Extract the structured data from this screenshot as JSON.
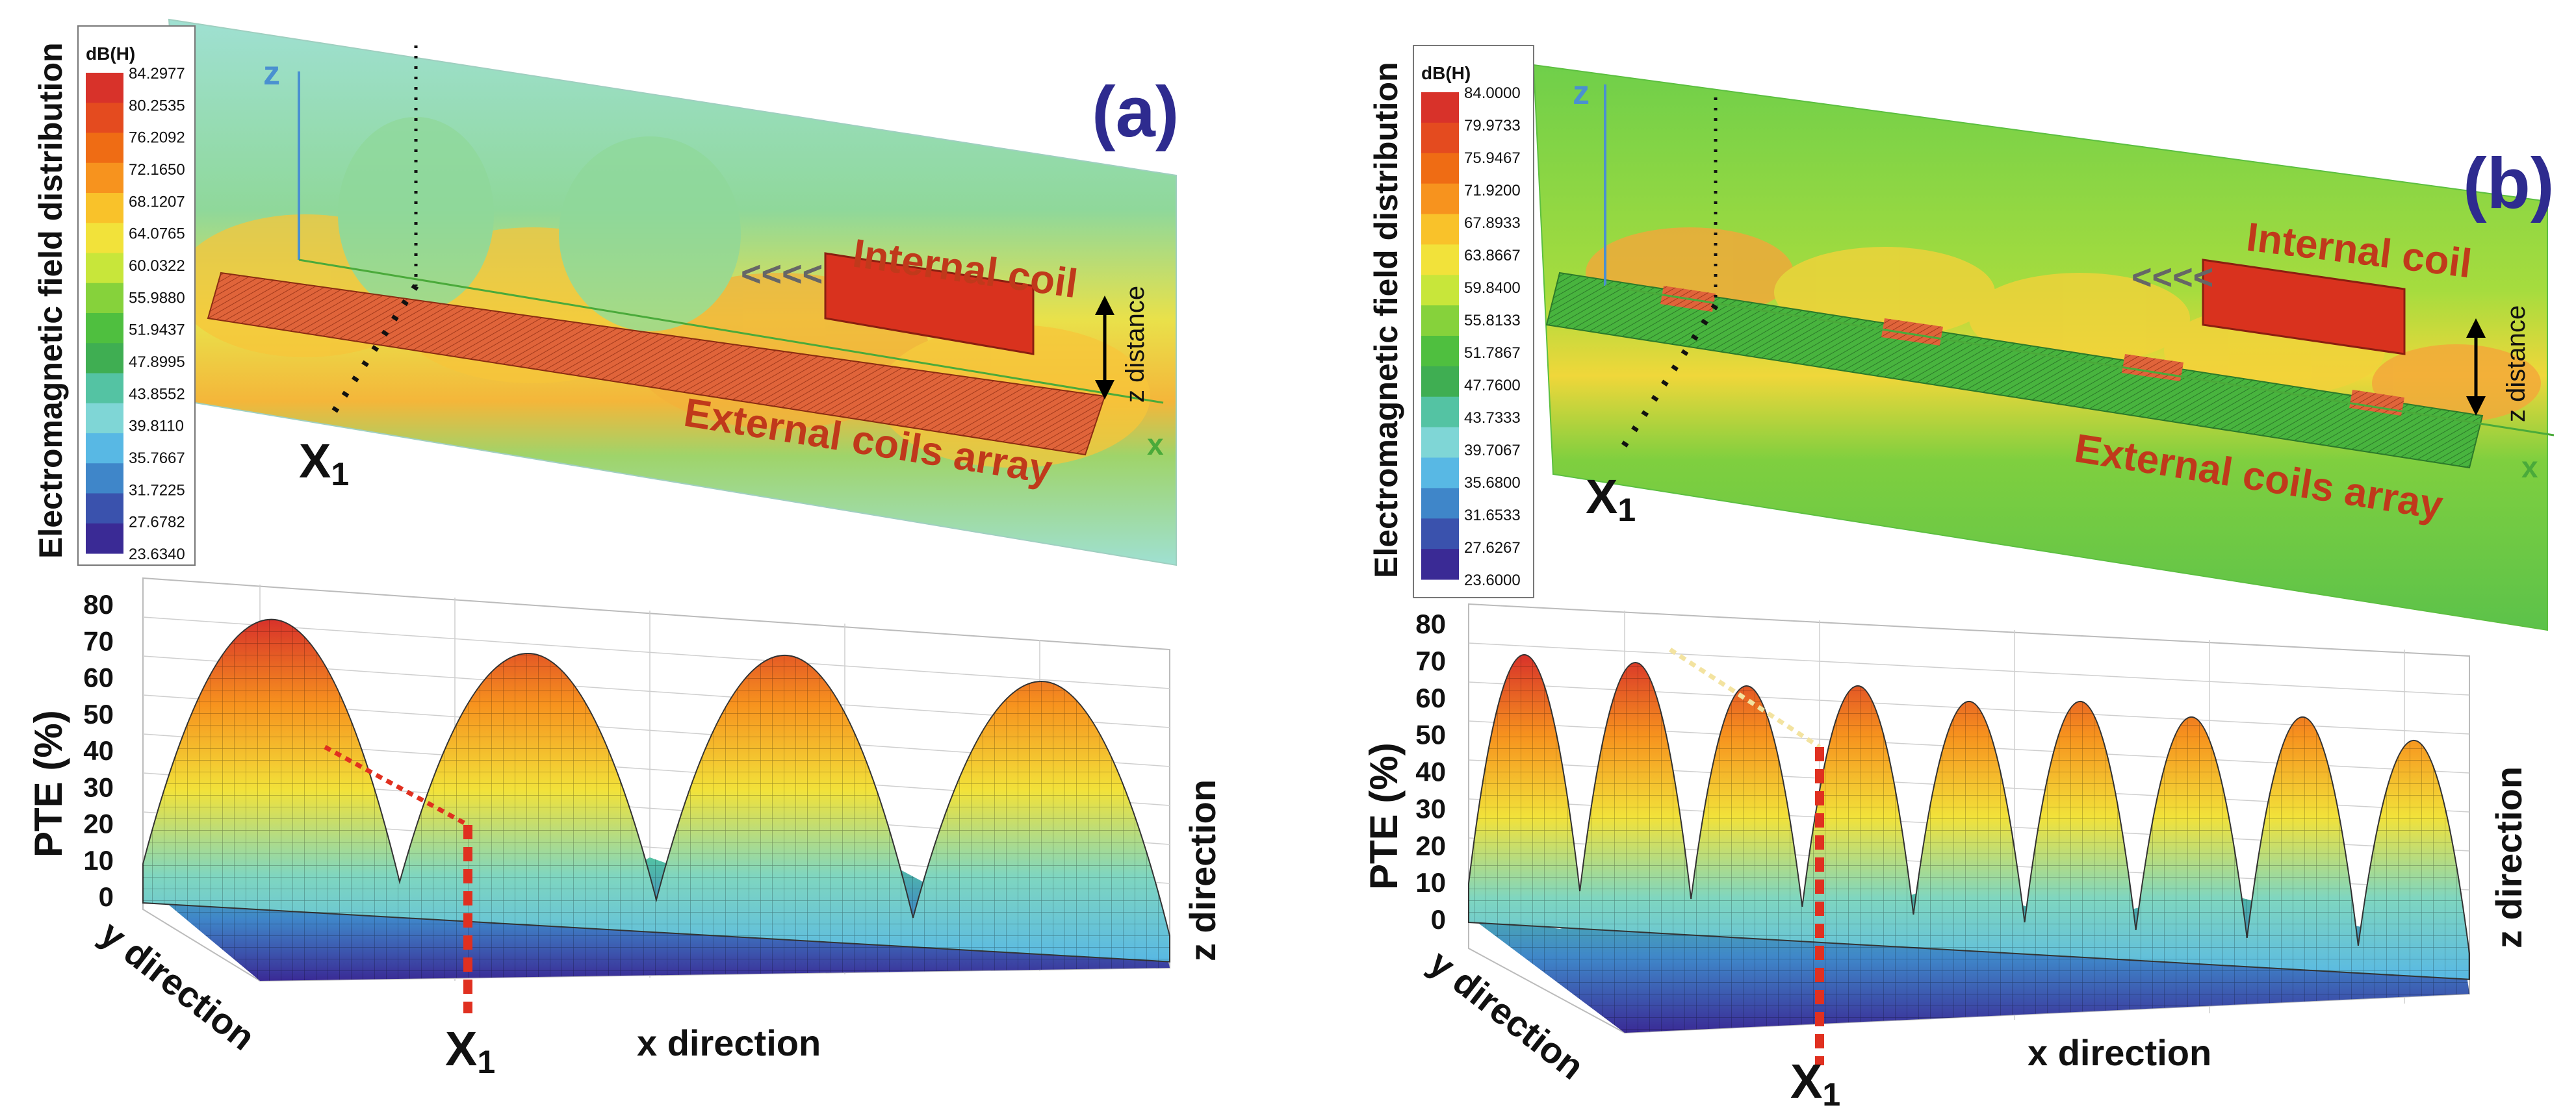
{
  "panels": [
    {
      "label": "(a)",
      "colorbar_title": "dB(H)",
      "colorbar_ticks": [
        "84.2977",
        "80.2535",
        "76.2092",
        "72.1650",
        "68.1207",
        "64.0765",
        "60.0322",
        "55.9880",
        "51.9437",
        "47.8995",
        "43.8552",
        "39.8110",
        "35.7667",
        "31.7225",
        "27.6782",
        "23.6340"
      ],
      "field_axis_label": "Electromagnetic field distribution",
      "axis_z": "z",
      "axis_x": "x",
      "x1_label": "X",
      "x1_sub": "1",
      "internal_coil_label": "Internal coil",
      "external_coils_label": "External coils array",
      "z_distance_label": "z distance",
      "arrow_glyphs": "<<<<",
      "pte_ylabel": "PTE (%)",
      "pte_ticks": [
        "80",
        "70",
        "60",
        "50",
        "40",
        "30",
        "20",
        "10",
        "0"
      ],
      "x_dir_label": "x direction",
      "y_dir_label": "y direction",
      "z_dir_label": "z direction",
      "bottom_x1_label": "X",
      "bottom_x1_sub": "1"
    },
    {
      "label": "(b)",
      "colorbar_title": "dB(H)",
      "colorbar_ticks": [
        "84.0000",
        "79.9733",
        "75.9467",
        "71.9200",
        "67.8933",
        "63.8667",
        "59.8400",
        "55.8133",
        "51.7867",
        "47.7600",
        "43.7333",
        "39.7067",
        "35.6800",
        "31.6533",
        "27.6267",
        "23.6000"
      ],
      "field_axis_label": "Electromagnetic field distribution",
      "axis_z": "z",
      "axis_x": "x",
      "x1_label": "X",
      "x1_sub": "1",
      "internal_coil_label": "Internal coil",
      "external_coils_label": "External coils array",
      "z_distance_label": "z distance",
      "arrow_glyphs": "<<<<",
      "pte_ylabel": "PTE (%)",
      "pte_ticks": [
        "80",
        "70",
        "60",
        "50",
        "40",
        "30",
        "20",
        "10",
        "0"
      ],
      "x_dir_label": "x direction",
      "y_dir_label": "y direction",
      "z_dir_label": "z direction",
      "bottom_x1_label": "X",
      "bottom_x1_sub": "1"
    }
  ],
  "colors": {
    "label_purple": "#2e2b8f",
    "coil_red": "#d9321e",
    "coil_text": "#c0391b",
    "colormap": [
      "#d8322a",
      "#e44b1f",
      "#ef6c14",
      "#f7931e",
      "#f9c22a",
      "#f2e23a",
      "#c8e63a",
      "#86d23b",
      "#4fbf3f",
      "#3fae52",
      "#54c3a3",
      "#7fd6d6",
      "#58b8e4",
      "#3f86c9",
      "#3a52ad",
      "#3a2a95"
    ]
  },
  "chart_data": [
    {
      "type": "surface",
      "title": "(a)",
      "xlabel": "x direction",
      "ylabel": "y direction",
      "zlabel": "PTE (%)",
      "zlim": [
        0,
        80
      ],
      "ridge_peaks_pte": [
        72,
        68,
        72,
        70
      ],
      "marker": "X1"
    },
    {
      "type": "surface",
      "title": "(b)",
      "xlabel": "x direction",
      "ylabel": "y direction",
      "zlabel": "PTE (%)",
      "zlim": [
        0,
        80
      ],
      "ridge_peaks_pte": [
        72,
        72,
        68,
        70,
        68,
        70,
        68,
        70,
        66
      ],
      "marker": "X1"
    }
  ]
}
